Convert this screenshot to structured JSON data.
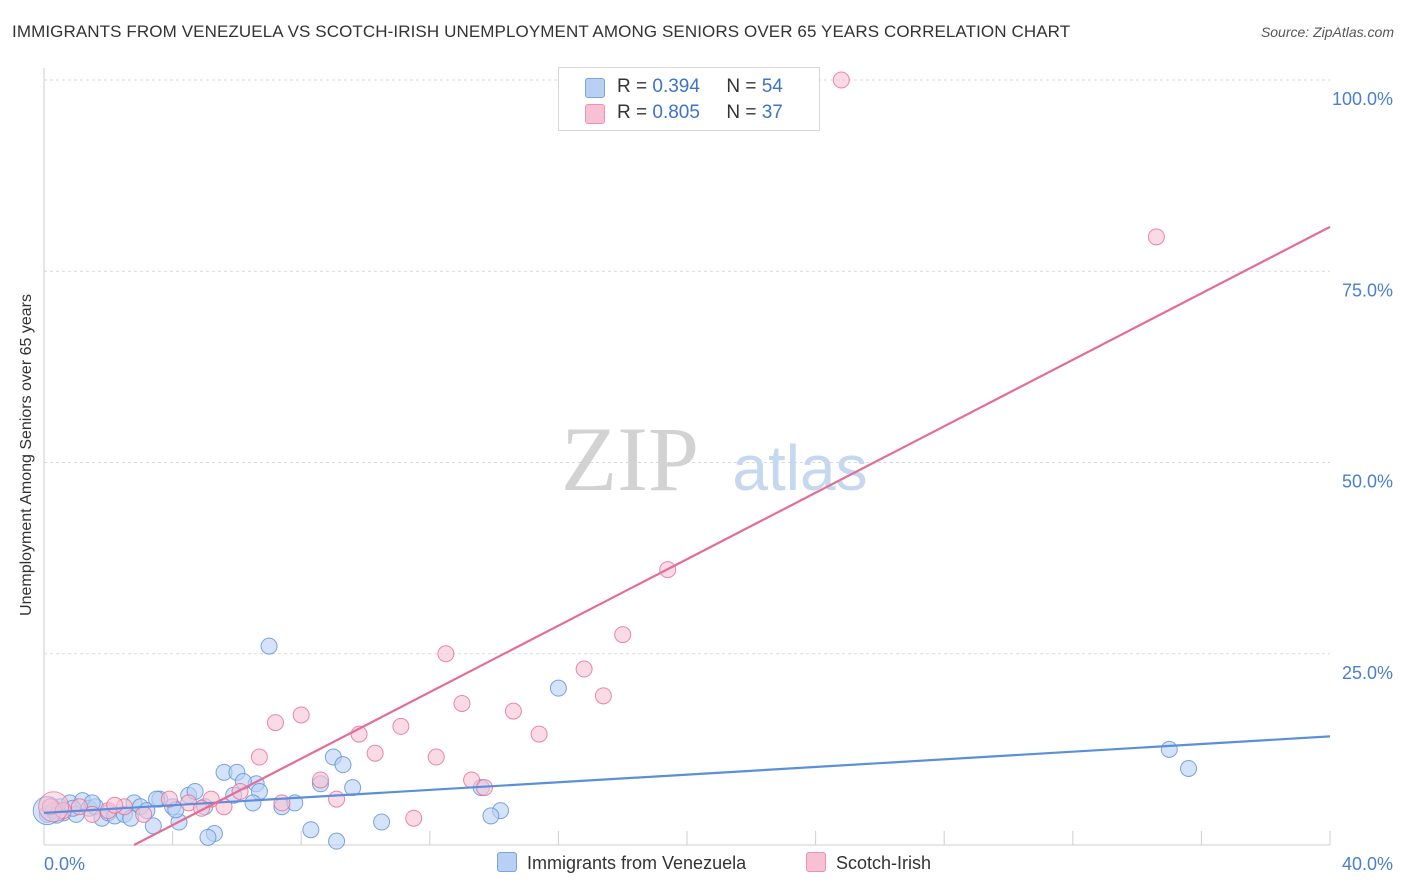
{
  "chart_data": {
    "type": "scatter",
    "title": "IMMIGRANTS FROM VENEZUELA VS SCOTCH-IRISH UNEMPLOYMENT AMONG SENIORS OVER 65 YEARS CORRELATION CHART",
    "source": "Source: ZipAtlas.com",
    "xlabel": "",
    "ylabel": "Unemployment Among Seniors over 65 years",
    "xlim": [
      0,
      40
    ],
    "ylim": [
      0,
      100
    ],
    "x_tick_labels": [
      "0.0%",
      "40.0%"
    ],
    "y_tick_labels": [
      "100.0%",
      "75.0%",
      "50.0%",
      "25.0%"
    ],
    "y_tick_values": [
      100,
      75,
      50,
      25
    ],
    "watermark": {
      "zip": "ZIP",
      "atlas": "atlas"
    },
    "legend_labels": {
      "r": "R =",
      "n": "N ="
    },
    "series": [
      {
        "name": "Immigrants from Venezuela",
        "color": "#5b8fdb",
        "fill": "#b7d0f4",
        "R": "0.394",
        "N": "54",
        "trend": {
          "x": [
            0,
            40
          ],
          "y": [
            4.2,
            14.2
          ]
        },
        "points": [
          [
            0.1,
            4.0
          ],
          [
            0.3,
            4.5
          ],
          [
            0.5,
            5.0
          ],
          [
            0.6,
            4.2
          ],
          [
            0.8,
            5.5
          ],
          [
            1.0,
            4.0
          ],
          [
            1.2,
            5.8
          ],
          [
            1.4,
            4.8
          ],
          [
            1.6,
            5.0
          ],
          [
            1.8,
            3.5
          ],
          [
            2.0,
            4.2
          ],
          [
            2.2,
            3.8
          ],
          [
            2.5,
            4.0
          ],
          [
            2.8,
            5.5
          ],
          [
            3.0,
            5.0
          ],
          [
            3.2,
            4.5
          ],
          [
            3.4,
            2.5
          ],
          [
            3.6,
            6.0
          ],
          [
            4.0,
            5.0
          ],
          [
            4.2,
            3.0
          ],
          [
            4.5,
            6.5
          ],
          [
            4.7,
            7.0
          ],
          [
            5.0,
            5.0
          ],
          [
            5.3,
            1.5
          ],
          [
            5.6,
            9.5
          ],
          [
            6.0,
            9.5
          ],
          [
            5.9,
            6.5
          ],
          [
            6.6,
            8.0
          ],
          [
            7.0,
            26.0
          ],
          [
            7.4,
            5.0
          ],
          [
            7.8,
            5.5
          ],
          [
            8.3,
            2.0
          ],
          [
            8.6,
            8.0
          ],
          [
            9.0,
            11.5
          ],
          [
            9.3,
            10.5
          ],
          [
            9.6,
            7.5
          ],
          [
            10.5,
            3.0
          ],
          [
            13.6,
            7.5
          ],
          [
            14.2,
            4.5
          ],
          [
            16.0,
            20.5
          ],
          [
            35.0,
            12.5
          ],
          [
            35.6,
            10.0
          ],
          [
            5.1,
            1.0
          ],
          [
            6.7,
            7.0
          ],
          [
            1.5,
            5.5
          ],
          [
            0.9,
            4.8
          ],
          [
            6.5,
            5.5
          ],
          [
            2.7,
            3.5
          ],
          [
            9.1,
            0.5
          ],
          [
            13.9,
            3.8
          ],
          [
            3.5,
            6.0
          ],
          [
            4.1,
            4.6
          ],
          [
            0.4,
            3.9
          ],
          [
            6.2,
            8.3
          ]
        ]
      },
      {
        "name": "Scotch-Irish",
        "color": "#e46d96",
        "fill": "#f7c1d3",
        "R": "0.805",
        "N": "37",
        "trend": {
          "x": [
            2.8,
            40
          ],
          "y": [
            0,
            80.8
          ]
        },
        "points": [
          [
            0.2,
            5.0
          ],
          [
            0.6,
            4.5
          ],
          [
            1.1,
            5.0
          ],
          [
            1.5,
            4.0
          ],
          [
            2.0,
            4.5
          ],
          [
            2.5,
            5.0
          ],
          [
            3.1,
            4.0
          ],
          [
            3.9,
            6.0
          ],
          [
            4.5,
            5.5
          ],
          [
            5.2,
            6.0
          ],
          [
            5.6,
            5.0
          ],
          [
            6.1,
            7.0
          ],
          [
            6.7,
            11.5
          ],
          [
            7.2,
            16.0
          ],
          [
            8.0,
            17.0
          ],
          [
            8.6,
            8.5
          ],
          [
            9.1,
            6.0
          ],
          [
            9.8,
            14.5
          ],
          [
            10.3,
            12.0
          ],
          [
            11.1,
            15.5
          ],
          [
            12.2,
            11.5
          ],
          [
            12.5,
            25.0
          ],
          [
            13.0,
            18.5
          ],
          [
            13.3,
            8.5
          ],
          [
            13.7,
            7.5
          ],
          [
            14.6,
            17.5
          ],
          [
            15.4,
            14.5
          ],
          [
            16.8,
            23.0
          ],
          [
            17.4,
            19.5
          ],
          [
            18.0,
            27.5
          ],
          [
            19.4,
            36.0
          ],
          [
            24.8,
            100.0
          ],
          [
            34.6,
            79.5
          ],
          [
            7.4,
            5.5
          ],
          [
            4.9,
            4.8
          ],
          [
            11.5,
            3.5
          ],
          [
            2.2,
            5.2
          ]
        ]
      }
    ]
  }
}
